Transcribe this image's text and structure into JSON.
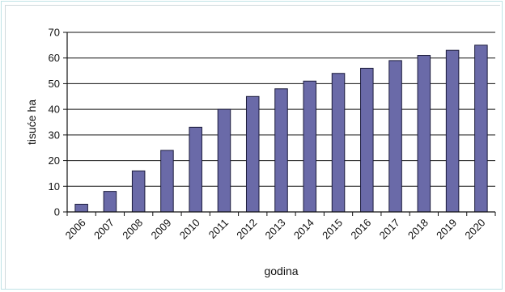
{
  "chart_data": {
    "type": "bar",
    "title": "",
    "xlabel": "godina",
    "ylabel": "tisuće ha",
    "categories": [
      "2006",
      "2007",
      "2008",
      "2009",
      "2010",
      "2011",
      "2012",
      "2013",
      "2014",
      "2015",
      "2016",
      "2017",
      "2018",
      "2019",
      "2020"
    ],
    "values": [
      3,
      8,
      16,
      24,
      33,
      40,
      45,
      48,
      51,
      54,
      56,
      59,
      61,
      63,
      65
    ],
    "ylim": [
      0,
      70
    ],
    "yticks": [
      "0",
      "10",
      "20",
      "30",
      "40",
      "50",
      "60",
      "70"
    ],
    "grid": true,
    "legend": "none",
    "colors": {
      "bar": "#6a6aa8",
      "bar_stroke": "#1c1c3c",
      "grid": "#111111",
      "axis": "#111111"
    }
  }
}
